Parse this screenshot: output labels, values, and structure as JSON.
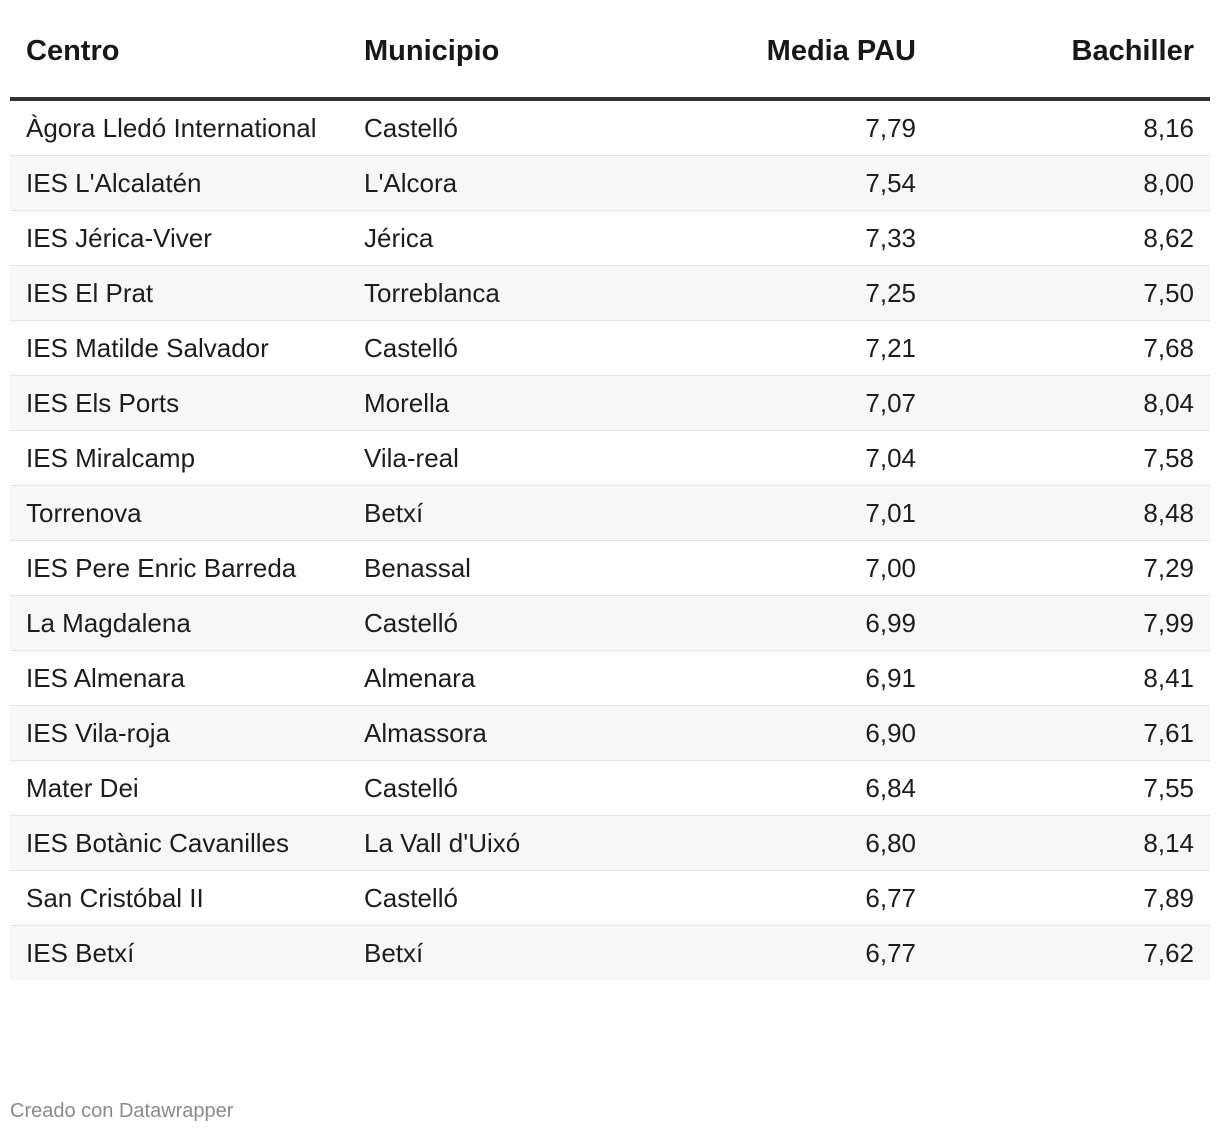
{
  "chart_data": {
    "type": "table",
    "columns": [
      "Centro",
      "Municipio",
      "Media PAU",
      "Bachiller"
    ],
    "rows": [
      [
        "Àgora Lledó International",
        "Castelló",
        "7,79",
        "8,16"
      ],
      [
        "IES L'Alcalatén",
        "L'Alcora",
        "7,54",
        "8,00"
      ],
      [
        "IES Jérica-Viver",
        "Jérica",
        "7,33",
        "8,62"
      ],
      [
        "IES El Prat",
        "Torreblanca",
        "7,25",
        "7,50"
      ],
      [
        "IES Matilde Salvador",
        "Castelló",
        "7,21",
        "7,68"
      ],
      [
        "IES Els Ports",
        "Morella",
        "7,07",
        "8,04"
      ],
      [
        "IES Miralcamp",
        "Vila-real",
        "7,04",
        "7,58"
      ],
      [
        "Torrenova",
        "Betxí",
        "7,01",
        "8,48"
      ],
      [
        "IES Pere Enric Barreda",
        "Benassal",
        "7,00",
        "7,29"
      ],
      [
        "La Magdalena",
        "Castelló",
        "6,99",
        "7,99"
      ],
      [
        "IES Almenara",
        "Almenara",
        "6,91",
        "8,41"
      ],
      [
        "IES Vila-roja",
        "Almassora",
        "6,90",
        "7,61"
      ],
      [
        "Mater Dei",
        "Castelló",
        "6,84",
        "7,55"
      ],
      [
        "IES Botànic Cavanilles",
        "La Vall d'Uixó",
        "6,80",
        "8,14"
      ],
      [
        "San Cristóbal II",
        "Castelló",
        "6,77",
        "7,89"
      ],
      [
        "IES Betxí",
        "Betxí",
        "6,77",
        "7,62"
      ]
    ]
  },
  "footer": {
    "credit": "Creado con Datawrapper"
  },
  "colors": {
    "header_rule": "#333333",
    "row_stripe": "#f7f7f7",
    "row_divider": "#e3e3e3",
    "footer_text": "#8a8a8a"
  }
}
